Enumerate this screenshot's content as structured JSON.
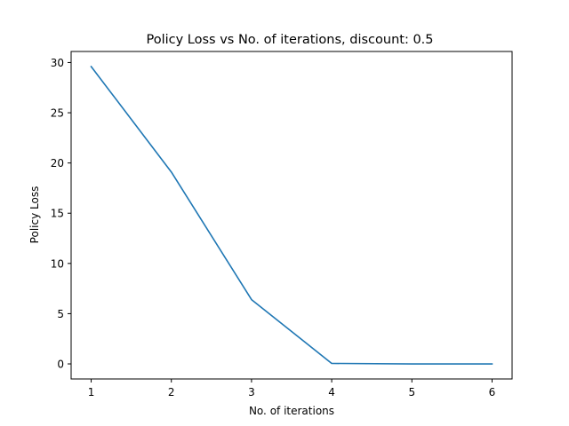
{
  "chart_data": {
    "type": "line",
    "title": "Policy Loss vs No. of iterations, discount: 0.5",
    "xlabel": "No. of iterations",
    "ylabel": "Policy Loss",
    "xlim": [
      0.75,
      6.25
    ],
    "ylim": [
      -1.5,
      31.1
    ],
    "xticks": [
      1,
      2,
      3,
      4,
      5,
      6
    ],
    "yticks": [
      0,
      5,
      10,
      15,
      20,
      25,
      30
    ],
    "grid": false,
    "legend": "none",
    "series": [
      {
        "color": "#1f77b4",
        "x": [
          1,
          2,
          3,
          4,
          5,
          6
        ],
        "y": [
          29.6,
          19.1,
          6.4,
          0.05,
          0.0,
          0.0
        ]
      }
    ]
  }
}
